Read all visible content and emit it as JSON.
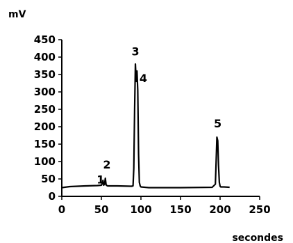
{
  "chart_data": {
    "type": "line",
    "ylabel": "mV",
    "xlabel": "secondes",
    "xlim": [
      0,
      250
    ],
    "ylim": [
      0,
      450
    ],
    "x_ticks": [
      0,
      50,
      100,
      150,
      200,
      250
    ],
    "y_ticks": [
      0,
      50,
      100,
      150,
      200,
      250,
      300,
      350,
      400,
      450
    ],
    "grid": false,
    "series": [
      {
        "x": [
          0,
          10,
          30,
          45,
          50,
          51,
          52,
          53,
          54,
          55,
          56,
          57,
          58,
          70,
          88,
          90,
          91,
          92,
          93,
          94,
          95,
          96,
          97,
          98,
          99,
          100,
          110,
          150,
          190,
          194,
          195,
          196,
          197,
          198,
          199,
          200,
          201,
          205,
          212
        ],
        "y": [
          25,
          28,
          30,
          31,
          32,
          36,
          46,
          32,
          35,
          52,
          33,
          31,
          30,
          30,
          29,
          30,
          80,
          250,
          380,
          330,
          360,
          305,
          120,
          40,
          30,
          27,
          25,
          25,
          26,
          35,
          100,
          170,
          160,
          90,
          40,
          29,
          27,
          27,
          26
        ]
      }
    ],
    "annotations": [
      {
        "text": "1",
        "x": 49,
        "y": 37
      },
      {
        "text": "2",
        "x": 57,
        "y": 80
      },
      {
        "text": "3",
        "x": 93,
        "y": 405
      },
      {
        "text": "4",
        "x": 103,
        "y": 328
      },
      {
        "text": "5",
        "x": 197,
        "y": 198
      }
    ]
  }
}
